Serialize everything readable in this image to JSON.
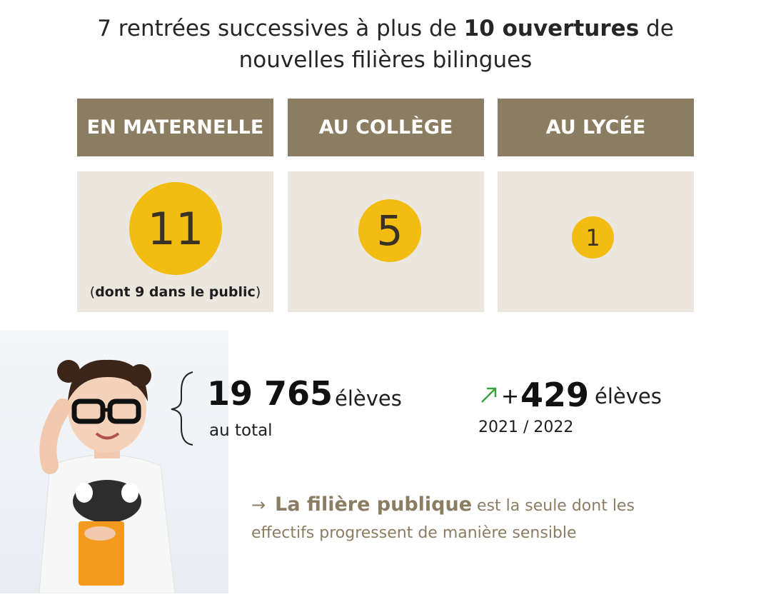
{
  "headline": {
    "part1": "7 rentrées successives à plus de ",
    "bold": "10 ouvertures",
    "part2": " de",
    "line2": "nouvelles filières bilingues"
  },
  "levels": [
    {
      "header": "EN MATERNELLE",
      "count": "11",
      "note_open": "(",
      "note_bold": "dont 9 dans le public",
      "note_close": ")"
    },
    {
      "header": "AU COLLÈGE",
      "count": "5"
    },
    {
      "header": "AU LYCÉE",
      "count": "1"
    }
  ],
  "stats": {
    "total_number": "19 765",
    "total_unit": "élèves",
    "total_caption": "au total",
    "increase_sign": "+",
    "increase_number": "429",
    "increase_unit": "élèves",
    "increase_period": "2021 / 2022"
  },
  "conclusion": {
    "arrow": "→",
    "emphasis": "La filière publique",
    "text_line1": "est la seule dont les",
    "text_line2": "effectifs progressent de manière sensible"
  },
  "colors": {
    "header_bg": "#8b7d62",
    "panel_bg": "#ebe7df",
    "circle": "#f3bc10",
    "trend_arrow": "#3aa23a"
  }
}
